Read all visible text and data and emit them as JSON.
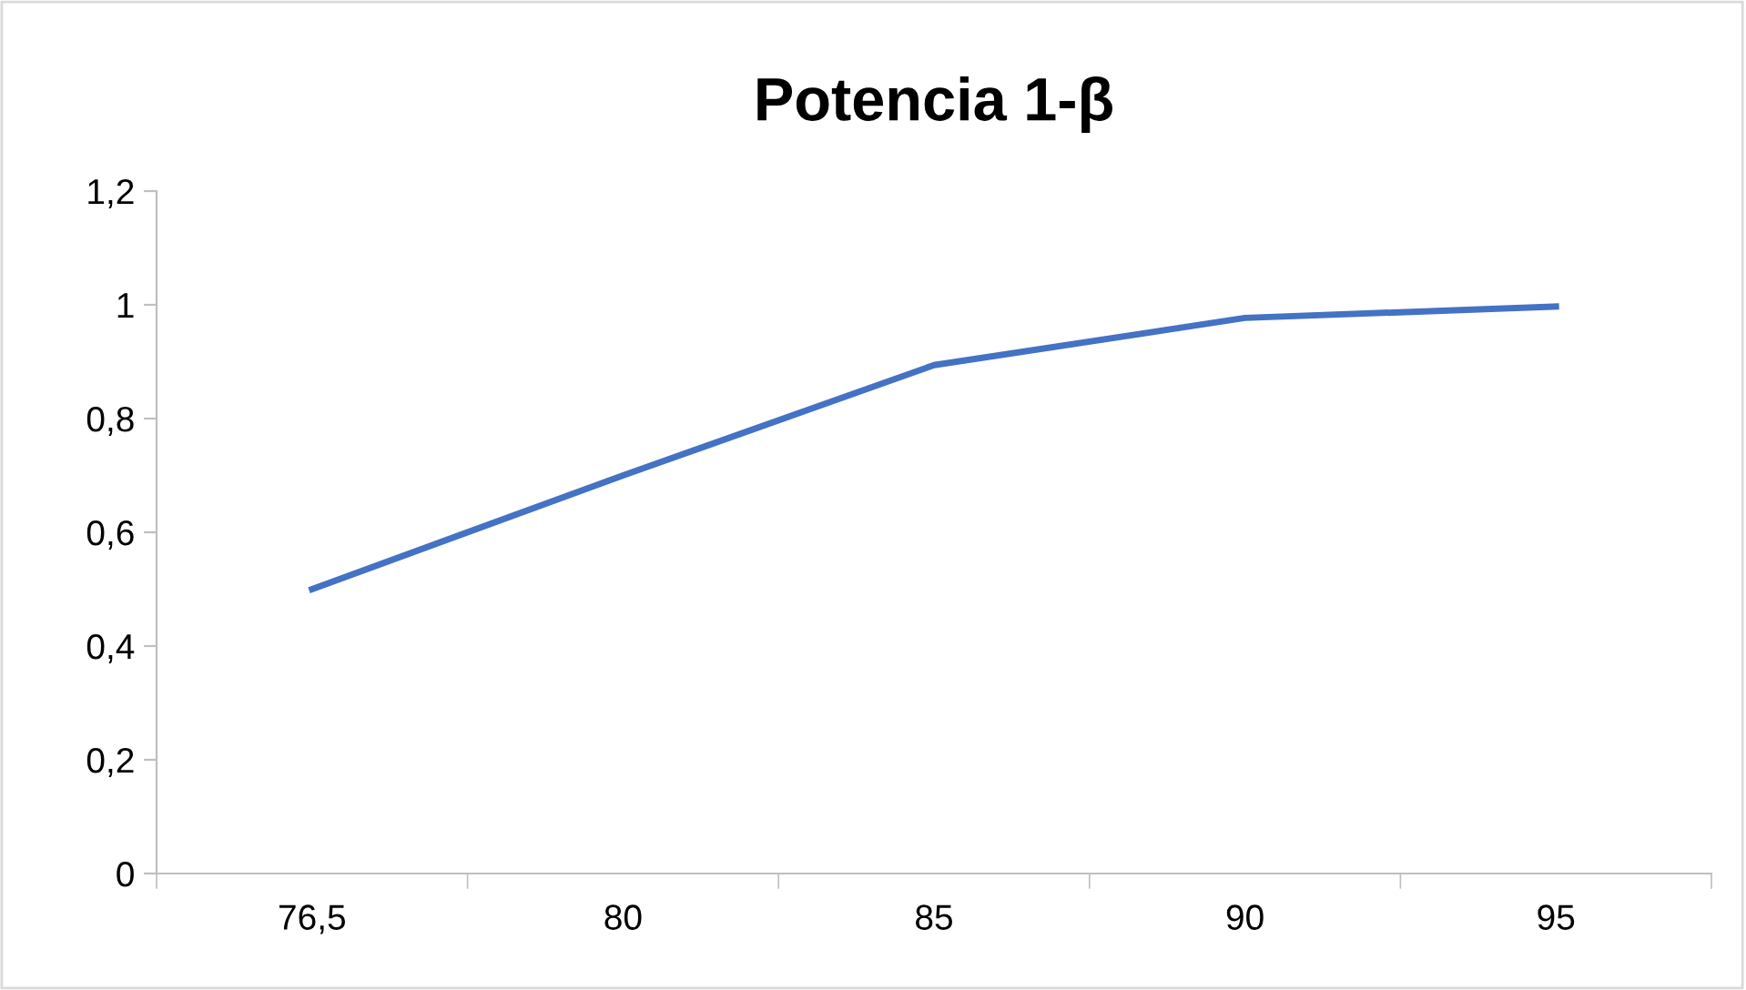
{
  "chart_data": {
    "type": "line",
    "title": "Potencia 1-β",
    "categories": [
      "76,5",
      "80",
      "85",
      "90",
      "95"
    ],
    "series": [
      {
        "color": "#4472c4",
        "values": [
          0.5,
          0.7,
          0.894,
          0.977,
          0.997
        ]
      }
    ],
    "ylim": [
      0,
      1.2
    ],
    "yticks": [
      0,
      {
        "value": 0.2,
        "label": "0,2"
      },
      {
        "value": 0.4,
        "label": "0,4"
      },
      {
        "value": 0.6,
        "label": "0,6"
      },
      {
        "value": 0.8,
        "label": "0,8"
      },
      1,
      {
        "value": 1.2,
        "label": "1,2"
      }
    ],
    "grid": false,
    "legend": false,
    "marker": "none",
    "line_style": "solid"
  }
}
